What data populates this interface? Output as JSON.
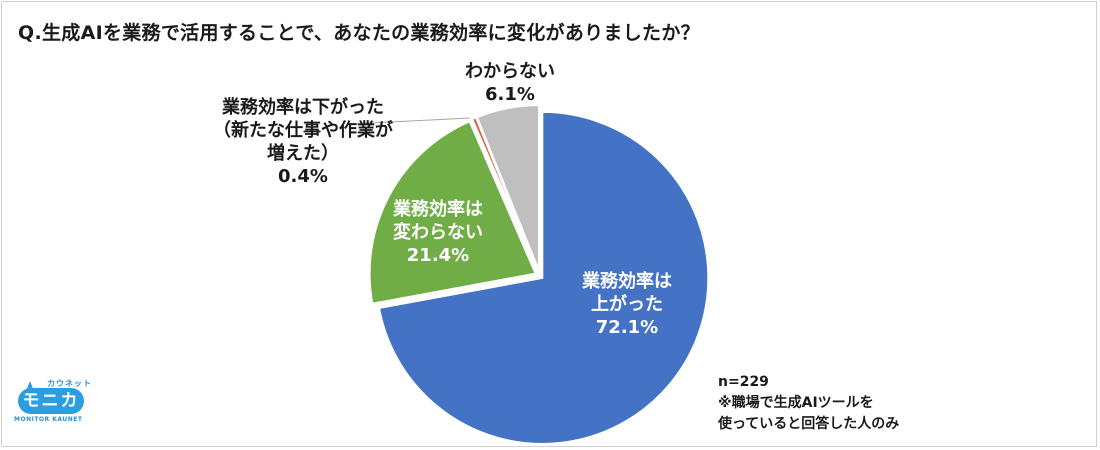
{
  "title": "Q.生成AIを業務で活用することで、あなたの業務効率に変化がありましたか？",
  "chart_data": {
    "type": "pie",
    "title": "Q.生成AIを業務で活用することで、あなたの業務効率に変化がありましたか？",
    "start_angle": "12 o'clock, clockwise",
    "slices": [
      {
        "label": "業務効率は上がった",
        "value": 72.1,
        "color": "#4472c4"
      },
      {
        "label": "業務効率は変わらない",
        "value": 21.4,
        "color": "#70ad47"
      },
      {
        "label": "業務効率は下がった（新たな仕事や作業が増えた）",
        "value": 0.4,
        "color": "#e0603a"
      },
      {
        "label": "わからない",
        "value": 6.1,
        "color": "#bfbfbf"
      }
    ],
    "unit": "%",
    "legend": "none (data labels)"
  },
  "labels": {
    "up": {
      "line1": "業務効率は",
      "line2": "上がった",
      "pct": "72.1%"
    },
    "same": {
      "line1": "業務効率は",
      "line2": "変わらない",
      "pct": "21.4%"
    },
    "down": {
      "line1": "業務効率は下がった",
      "line2": "（新たな仕事や作業が",
      "line3": "増えた）",
      "pct": "0.4%"
    },
    "unknown": {
      "line1": "わからない",
      "pct": "6.1%"
    }
  },
  "note": {
    "n": "n=229",
    "line1": "※職場で生成AIツールを",
    "line2": "使っていると回答した人のみ"
  },
  "logo": {
    "kana": "カウネット",
    "main": "モニカ",
    "sub": "MONITOR KAUNET"
  }
}
